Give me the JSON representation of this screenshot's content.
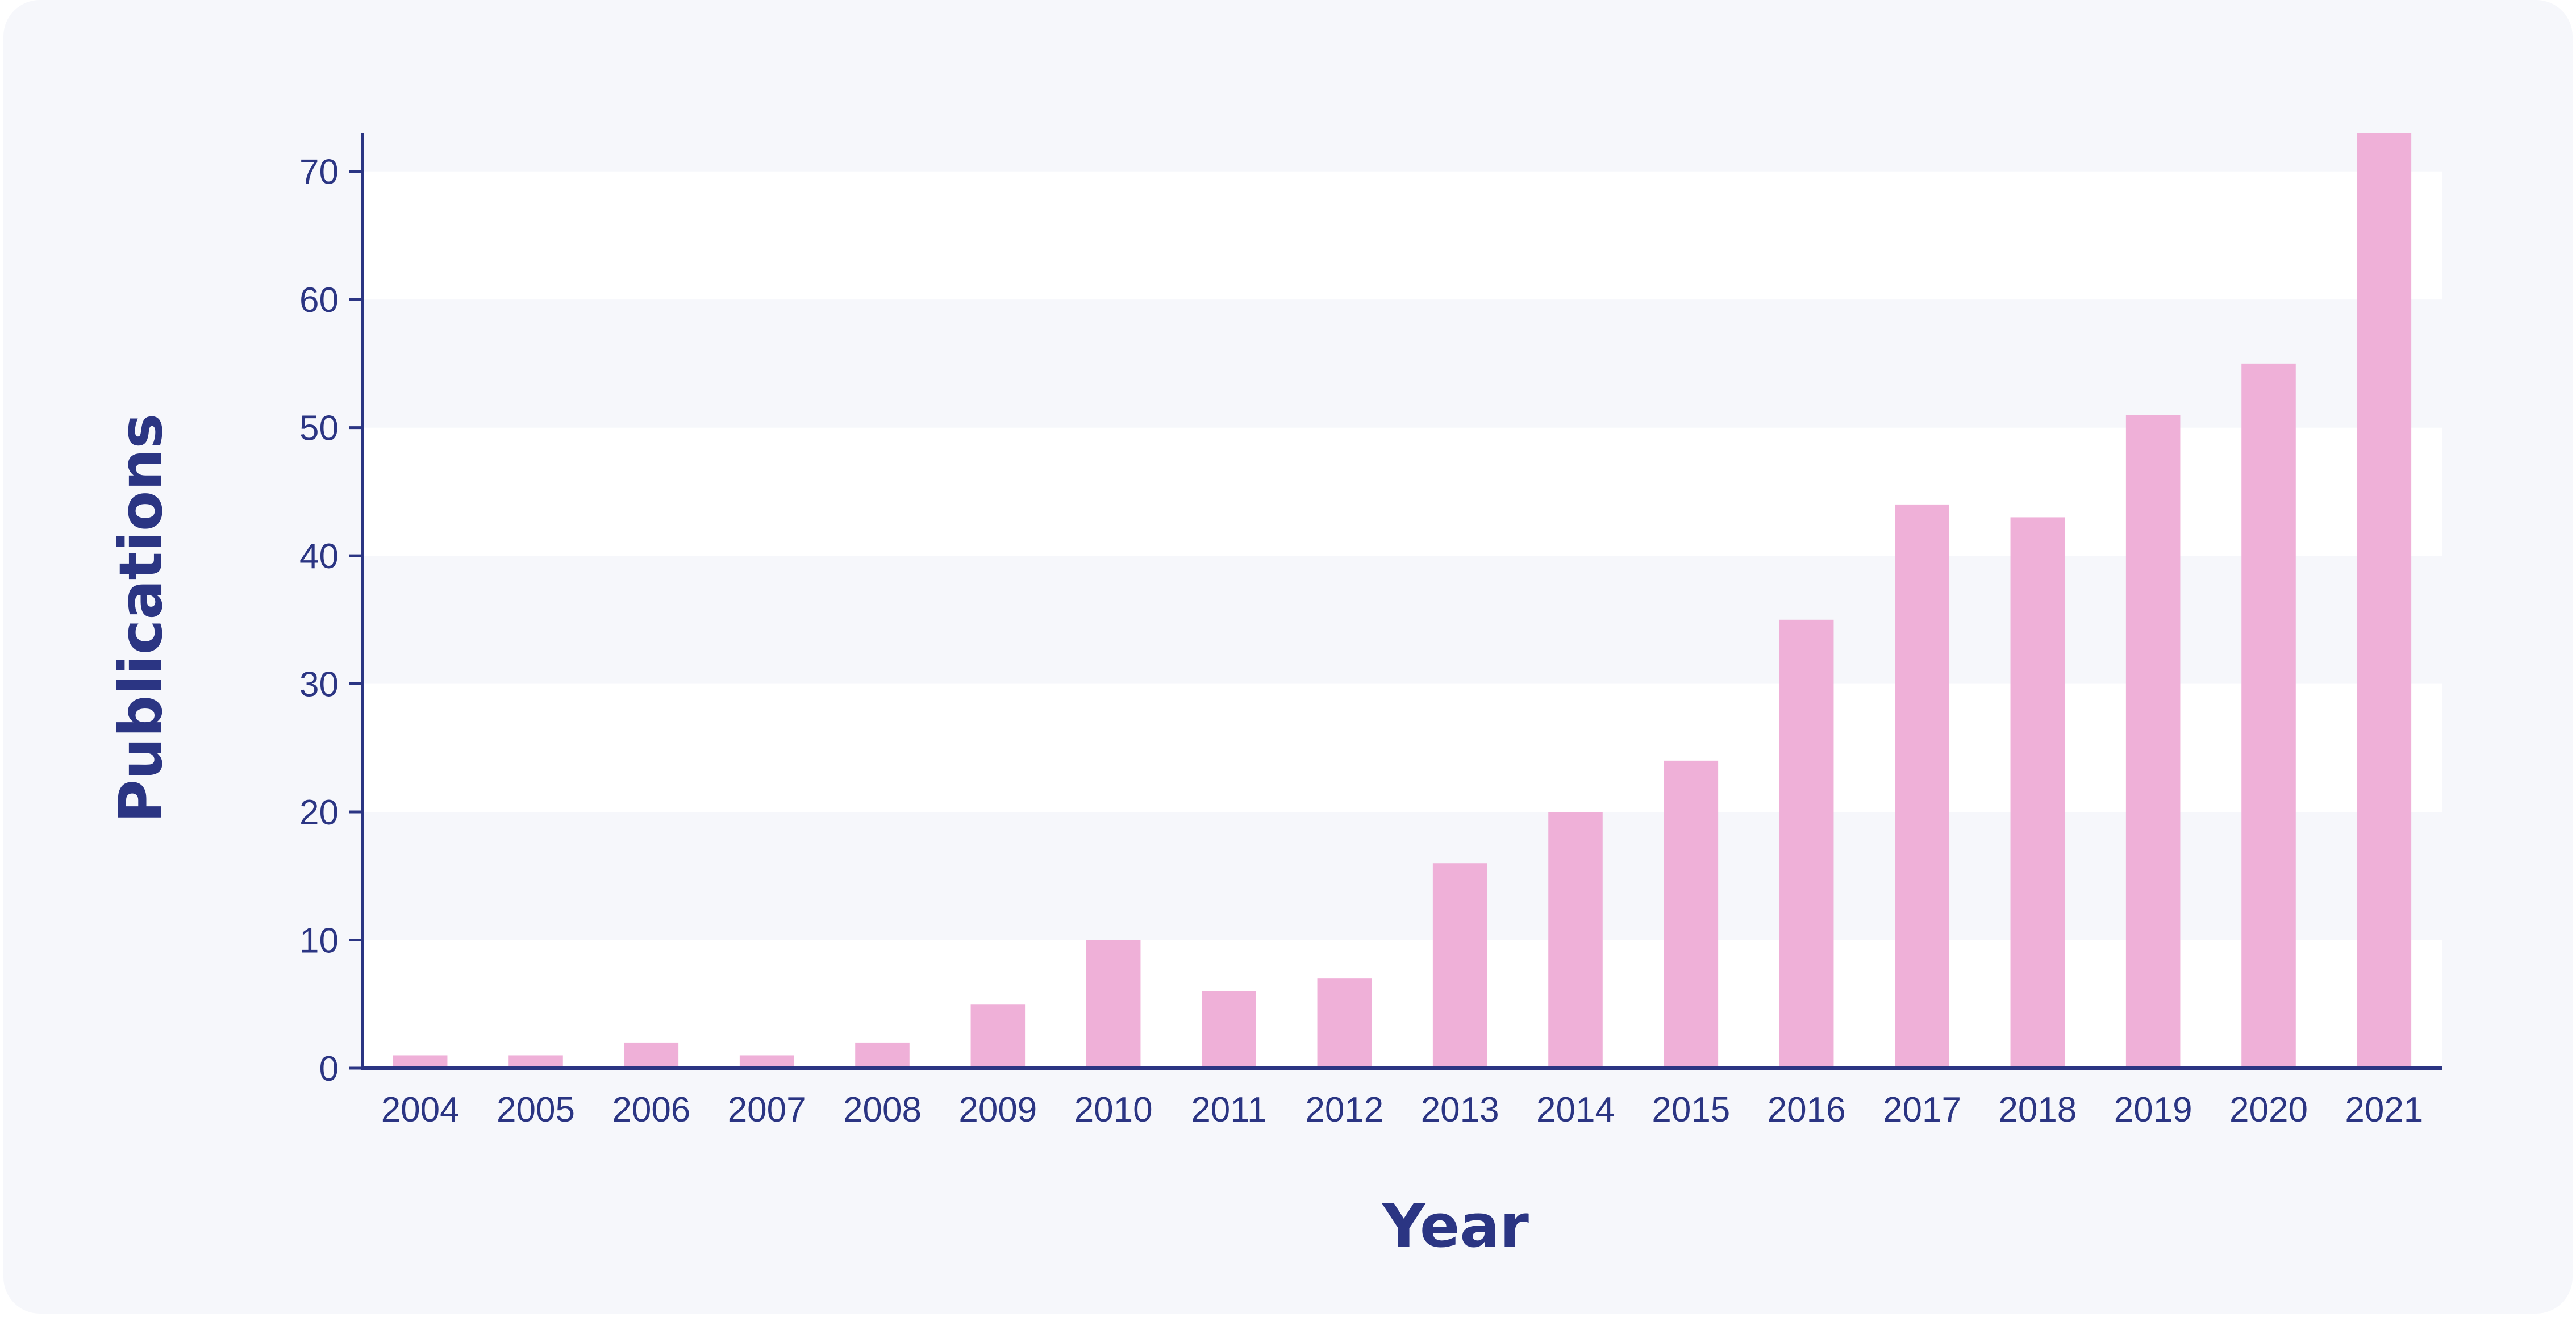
{
  "chart_data": {
    "type": "bar",
    "xlabel": "Year",
    "ylabel": "Publications",
    "categories": [
      "2004",
      "2005",
      "2006",
      "2007",
      "2008",
      "2009",
      "2010",
      "2011",
      "2012",
      "2013",
      "2014",
      "2015",
      "2016",
      "2017",
      "2018",
      "2019",
      "2020",
      "2021"
    ],
    "values": [
      1,
      1,
      2,
      1,
      2,
      5,
      10,
      6,
      7,
      16,
      20,
      24,
      35,
      44,
      43,
      51,
      55,
      73
    ],
    "yticks": [
      0,
      10,
      20,
      30,
      40,
      50,
      60,
      70
    ],
    "ylim": [
      0,
      73
    ],
    "grid": "alternating horizontal bands",
    "colors": {
      "bar": "#efb0d8",
      "axis": "#2b3583",
      "text": "#2b3583",
      "band_light": "#ffffff",
      "band_dark": "#f6f7fb"
    }
  }
}
